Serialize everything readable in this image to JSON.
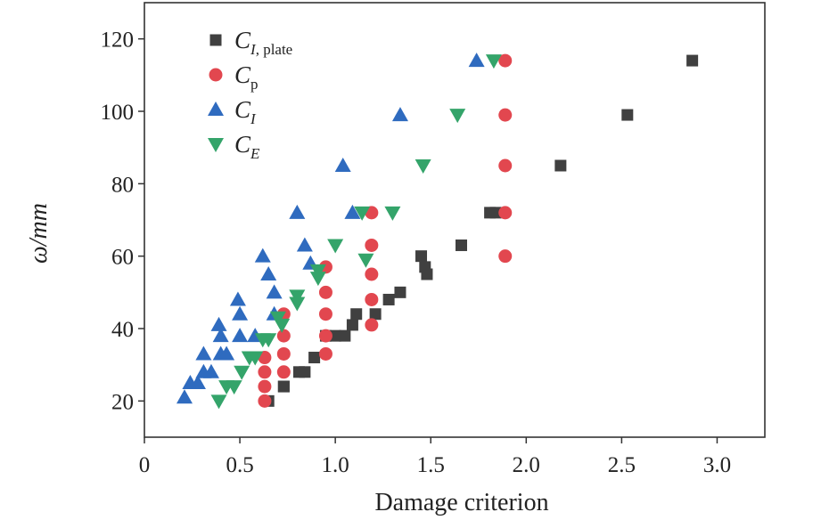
{
  "chart_data": {
    "type": "scatter",
    "xlabel": "Damage criterion",
    "ylabel": "ω/mm",
    "xlim": [
      0,
      3.25
    ],
    "ylim": [
      10,
      130
    ],
    "xticks": [
      0,
      0.5,
      1.0,
      1.5,
      2.0,
      2.5,
      3.0
    ],
    "xtick_labels": [
      "0",
      "0.5",
      "1.0",
      "1.5",
      "2.0",
      "2.5",
      "3.0"
    ],
    "yticks": [
      20,
      40,
      60,
      80,
      100,
      120
    ],
    "ytick_labels": [
      "20",
      "40",
      "60",
      "80",
      "100",
      "120"
    ],
    "legend_position": "top-left",
    "series": [
      {
        "name": "C_I,plate",
        "label_main": "C",
        "label_sub": "I",
        "label_sub2": ", plate",
        "marker": "square",
        "color": "#404040",
        "points": [
          [
            0.65,
            20
          ],
          [
            0.73,
            24
          ],
          [
            0.73,
            24
          ],
          [
            0.81,
            28
          ],
          [
            0.84,
            28
          ],
          [
            0.89,
            32
          ],
          [
            0.95,
            38
          ],
          [
            1.0,
            38
          ],
          [
            1.05,
            38
          ],
          [
            1.09,
            41
          ],
          [
            1.11,
            44
          ],
          [
            1.21,
            44
          ],
          [
            1.28,
            48
          ],
          [
            1.34,
            50
          ],
          [
            1.45,
            60
          ],
          [
            1.47,
            57
          ],
          [
            1.48,
            55
          ],
          [
            1.66,
            63
          ],
          [
            1.81,
            72
          ],
          [
            1.84,
            72
          ],
          [
            2.18,
            85
          ],
          [
            2.53,
            99
          ],
          [
            2.87,
            114
          ]
        ]
      },
      {
        "name": "C_p",
        "label_main": "C",
        "label_sub": "p",
        "label_sub2": "",
        "marker": "circle",
        "color": "#e2474f",
        "points": [
          [
            0.63,
            20
          ],
          [
            0.63,
            24
          ],
          [
            0.63,
            28
          ],
          [
            0.63,
            32
          ],
          [
            0.73,
            28
          ],
          [
            0.73,
            33
          ],
          [
            0.73,
            38
          ],
          [
            0.73,
            44
          ],
          [
            0.95,
            33
          ],
          [
            0.95,
            38
          ],
          [
            0.95,
            44
          ],
          [
            0.95,
            50
          ],
          [
            0.95,
            57
          ],
          [
            1.19,
            41
          ],
          [
            1.19,
            48
          ],
          [
            1.19,
            55
          ],
          [
            1.19,
            63
          ],
          [
            1.19,
            72
          ],
          [
            1.89,
            60
          ],
          [
            1.89,
            72
          ],
          [
            1.89,
            85
          ],
          [
            1.89,
            99
          ],
          [
            1.89,
            114
          ]
        ]
      },
      {
        "name": "C_I",
        "label_main": "C",
        "label_sub": "I",
        "label_sub2": "",
        "marker": "triangle-up",
        "color": "#2f6bbf",
        "points": [
          [
            0.21,
            21
          ],
          [
            0.24,
            25
          ],
          [
            0.28,
            25
          ],
          [
            0.31,
            28
          ],
          [
            0.35,
            28
          ],
          [
            0.31,
            33
          ],
          [
            0.4,
            33
          ],
          [
            0.43,
            33
          ],
          [
            0.4,
            38
          ],
          [
            0.39,
            41
          ],
          [
            0.5,
            38
          ],
          [
            0.5,
            44
          ],
          [
            0.49,
            48
          ],
          [
            0.58,
            38
          ],
          [
            0.62,
            60
          ],
          [
            0.65,
            55
          ],
          [
            0.68,
            50
          ],
          [
            0.68,
            44
          ],
          [
            0.8,
            72
          ],
          [
            0.84,
            63
          ],
          [
            0.87,
            58
          ],
          [
            1.04,
            85
          ],
          [
            1.09,
            72
          ],
          [
            1.34,
            99
          ],
          [
            1.74,
            114
          ]
        ]
      },
      {
        "name": "C_E",
        "label_main": "C",
        "label_sub": "E",
        "label_sub2": "",
        "marker": "triangle-down",
        "color": "#34a46a",
        "points": [
          [
            0.39,
            20
          ],
          [
            0.43,
            24
          ],
          [
            0.47,
            24
          ],
          [
            0.51,
            28
          ],
          [
            0.55,
            32
          ],
          [
            0.58,
            32
          ],
          [
            0.62,
            37
          ],
          [
            0.65,
            37
          ],
          [
            0.7,
            43
          ],
          [
            0.72,
            41
          ],
          [
            0.8,
            49
          ],
          [
            0.8,
            47
          ],
          [
            0.91,
            56
          ],
          [
            0.91,
            54
          ],
          [
            1.0,
            63
          ],
          [
            1.14,
            72
          ],
          [
            1.16,
            59
          ],
          [
            1.3,
            72
          ],
          [
            1.46,
            85
          ],
          [
            1.64,
            99
          ],
          [
            1.83,
            114
          ]
        ]
      }
    ]
  }
}
